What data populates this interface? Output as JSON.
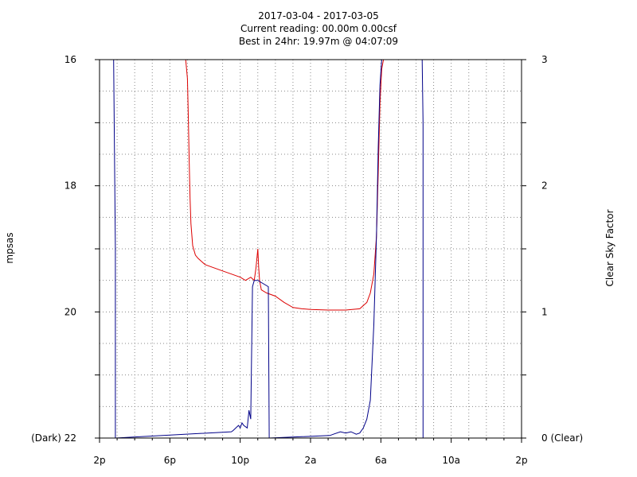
{
  "chart_data": {
    "type": "line",
    "title": "2017-03-04 - 2017-03-05",
    "subtitle_lines": [
      "Current reading:  00.00m  0.00csf",
      "Best in 24hr:  19.97m @ 04:07:09"
    ],
    "ylabel_left": "mpsas",
    "ylabel_right": "Clear Sky Factor",
    "x_unit": "hours since 2p (2017-03-04 14:00)",
    "xlim": [
      0,
      24
    ],
    "ylim_left": [
      22,
      16
    ],
    "ylim_right": [
      0,
      3
    ],
    "x_ticks": [
      "2p",
      "6p",
      "10p",
      "2a",
      "6a",
      "10a",
      "2p"
    ],
    "x_tick_values": [
      0,
      4,
      8,
      12,
      16,
      20,
      24
    ],
    "y_ticks_left": [
      "16",
      "18",
      "20",
      "(Dark) 22"
    ],
    "y_tick_values_left": [
      16,
      18,
      20,
      22
    ],
    "y_ticks_right": [
      "3",
      "2",
      "1",
      "0 (Clear)"
    ],
    "y_tick_values_right": [
      3,
      2,
      1,
      0
    ],
    "grid": true,
    "colors": {
      "mpsas": "#dd0000",
      "csf": "#000088",
      "ylabel_left": "#dd0000",
      "ylabel_right": "#008800"
    },
    "series": [
      {
        "axis": "left",
        "x": [
          0,
          4.9,
          5.0,
          5.05,
          5.1,
          5.15,
          5.2,
          5.3,
          5.45,
          5.6,
          5.8,
          6.0,
          6.5,
          7.0,
          7.5,
          8.0,
          8.3,
          8.6,
          8.8,
          8.9,
          9.0,
          9.05,
          9.1,
          9.2,
          9.5,
          10.0,
          10.5,
          11.0,
          11.5,
          12.0,
          13.0,
          14.0,
          14.8,
          15.2,
          15.4,
          15.6,
          15.75,
          15.85,
          15.95,
          16.05,
          16.15,
          16.3,
          17,
          24
        ],
        "values": [
          16.0,
          16.0,
          16.3,
          16.9,
          17.6,
          18.2,
          18.6,
          18.95,
          19.1,
          19.15,
          19.2,
          19.25,
          19.3,
          19.35,
          19.4,
          19.45,
          19.5,
          19.45,
          19.5,
          19.3,
          19.0,
          19.3,
          19.5,
          19.65,
          19.7,
          19.75,
          19.85,
          19.93,
          19.95,
          19.96,
          19.97,
          19.97,
          19.95,
          19.85,
          19.7,
          19.4,
          18.8,
          17.8,
          16.7,
          16.15,
          16.0,
          16.0,
          16.0,
          16.0
        ]
      },
      {
        "axis": "right",
        "x": [
          0.8,
          0.9,
          0.9,
          7.5,
          7.6,
          7.9,
          8.0,
          8.1,
          8.2,
          8.4,
          8.45,
          8.5,
          8.6,
          8.7,
          8.8,
          8.9,
          8.95,
          9.0,
          9.6,
          9.65,
          9.65,
          13.1,
          13.3,
          13.7,
          14.0,
          14.3,
          14.6,
          14.8,
          15.0,
          15.2,
          15.4,
          15.6,
          15.75,
          15.85,
          15.95,
          16.05,
          18.35,
          18.4,
          18.4
        ],
        "values": [
          3.0,
          1.5,
          0.0,
          0.05,
          0.06,
          0.1,
          0.08,
          0.12,
          0.1,
          0.08,
          0.15,
          0.22,
          0.15,
          1.2,
          1.25,
          1.25,
          1.25,
          1.25,
          1.2,
          0.0,
          0.0,
          0.02,
          0.03,
          0.05,
          0.04,
          0.05,
          0.03,
          0.04,
          0.08,
          0.15,
          0.3,
          0.9,
          1.6,
          2.3,
          2.8,
          3.0,
          3.0,
          2.5,
          0.0
        ]
      }
    ]
  }
}
